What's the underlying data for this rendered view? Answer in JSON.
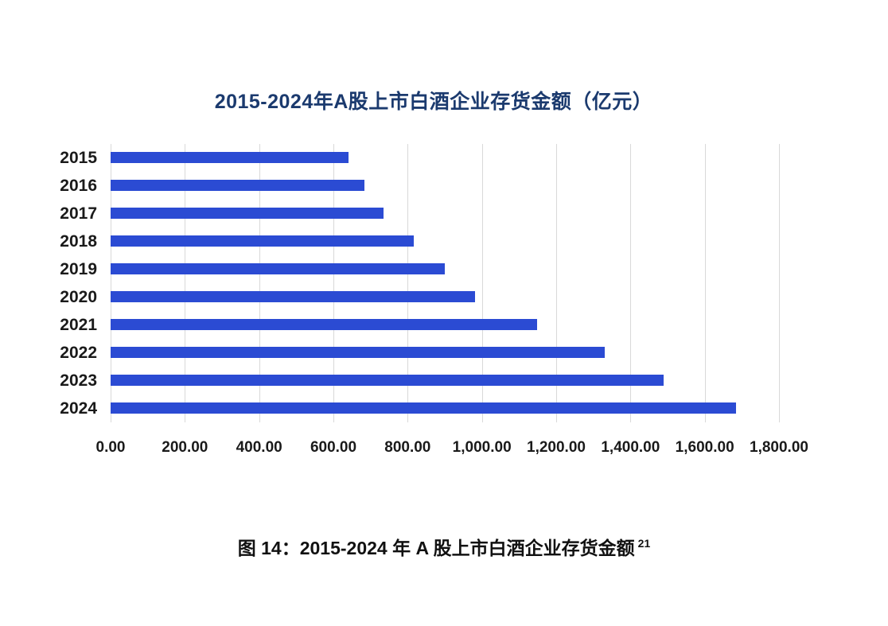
{
  "chart_data": {
    "type": "bar",
    "orientation": "horizontal",
    "title": "2015-2024年A股上市白酒企业存货金额（亿元）",
    "categories": [
      "2015",
      "2016",
      "2017",
      "2018",
      "2019",
      "2020",
      "2021",
      "2022",
      "2023",
      "2024"
    ],
    "values": [
      640,
      684,
      736,
      816,
      900,
      982,
      1148,
      1330,
      1490,
      1685
    ],
    "xlabel": "",
    "ylabel": "",
    "xlim": [
      0,
      1800
    ],
    "x_tick_interval": 200,
    "x_tick_labels": [
      "0.00",
      "200.00",
      "400.00",
      "600.00",
      "800.00",
      "1,000.00",
      "1,200.00",
      "1,400.00",
      "1,600.00",
      "1,800.00"
    ],
    "grid": "vertical-only",
    "legend_position": "none",
    "colors": {
      "bar": "#2b4bd3",
      "title": "#1b3a6e",
      "gridline": "#d9d9d9",
      "axis_text": "#1a1a1a"
    }
  },
  "caption": {
    "text": "图 14：2015-2024 年 A 股上市白酒企业存货金额",
    "superscript": "21"
  }
}
